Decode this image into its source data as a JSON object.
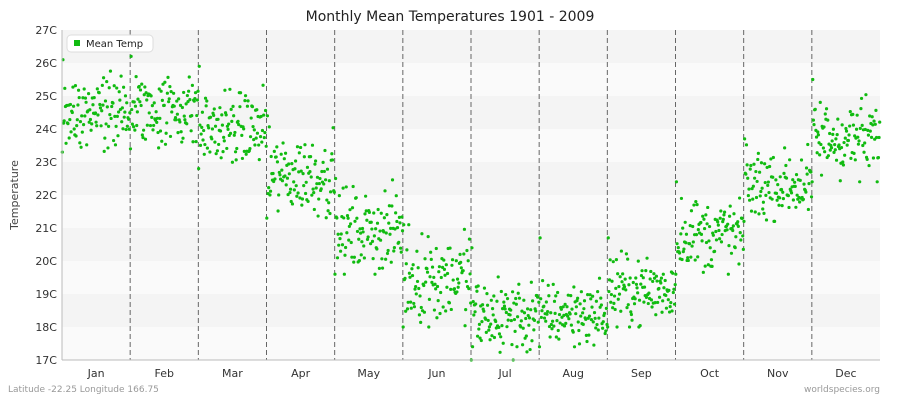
{
  "chart_data": {
    "type": "scatter",
    "title": "Monthly Mean Temperatures 1901 - 2009",
    "xlabel": "",
    "ylabel": "Temperature",
    "ylim": [
      17,
      27
    ],
    "y_ticks": [
      "17C",
      "18C",
      "19C",
      "20C",
      "21C",
      "22C",
      "23C",
      "24C",
      "25C",
      "26C",
      "27C"
    ],
    "categories": [
      "Jan",
      "Feb",
      "Mar",
      "Apr",
      "May",
      "Jun",
      "Jul",
      "Aug",
      "Sep",
      "Oct",
      "Nov",
      "Dec"
    ],
    "years": [
      1901,
      2009
    ],
    "grid": true,
    "legend_position": "top-left",
    "series": [
      {
        "name": "Mean Temp",
        "color": "#11bb11",
        "monthly_mean": [
          24.5,
          24.6,
          24.0,
          22.6,
          20.9,
          19.5,
          18.3,
          18.4,
          19.1,
          20.8,
          22.3,
          23.7
        ],
        "monthly_min": [
          23.3,
          23.4,
          22.8,
          21.3,
          19.6,
          18.0,
          17.0,
          17.4,
          18.0,
          19.6,
          21.2,
          22.4
        ],
        "monthly_max": [
          26.1,
          26.2,
          25.9,
          24.4,
          22.5,
          21.1,
          20.4,
          20.7,
          20.7,
          22.4,
          23.7,
          25.5
        ]
      }
    ]
  },
  "legend": {
    "label": "Mean Temp"
  },
  "footer": {
    "location": "Latitude -22.25 Longitude 166.75",
    "site": "worldspecies.org"
  }
}
